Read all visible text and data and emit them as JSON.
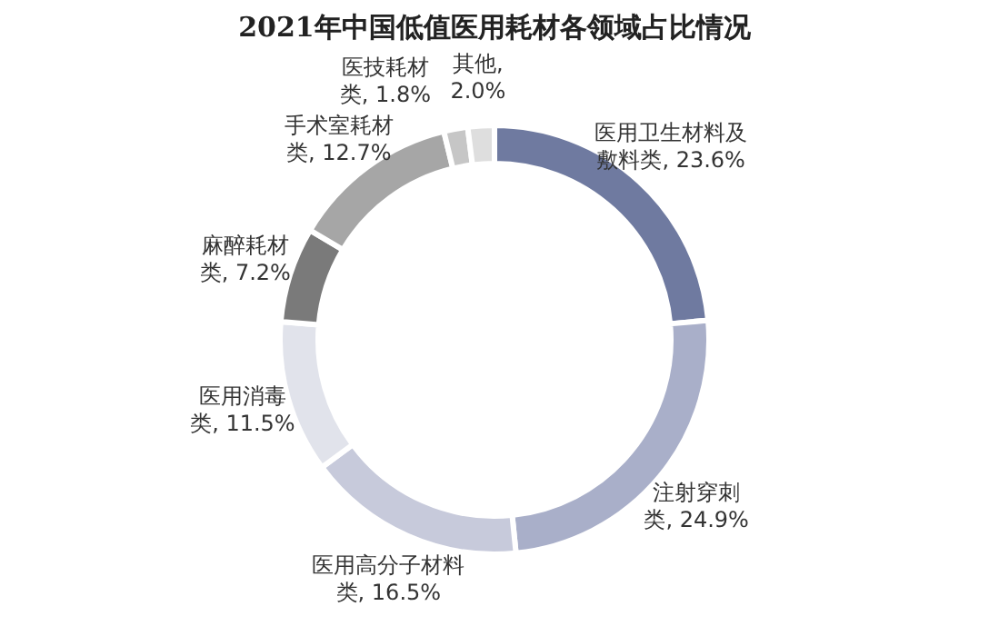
{
  "chart_data": {
    "type": "donut",
    "title": "2021年中国低值医用耗材各领域占比情况",
    "categories": [
      "医用卫生材料及敷料类",
      "注射穿刺类",
      "医用高分子材料类",
      "医用消毒类",
      "麻醉耗材类",
      "手术室耗材类",
      "医技耗材类",
      "其他"
    ],
    "values": [
      23.6,
      24.9,
      16.5,
      11.5,
      7.2,
      12.7,
      1.8,
      2.0
    ],
    "value_labels": [
      ", 23.6%",
      ", 24.9%",
      ", 16.5%",
      ", 11.5%",
      ", 7.2%",
      ", 12.7%",
      ", 1.8%",
      ", 2.0%"
    ],
    "colors": [
      "#6f7aa0",
      "#a9afc9",
      "#c7cadb",
      "#e1e3eb",
      "#7a7a7a",
      "#a6a6a6",
      "#c6c6c6",
      "#dedede"
    ]
  }
}
